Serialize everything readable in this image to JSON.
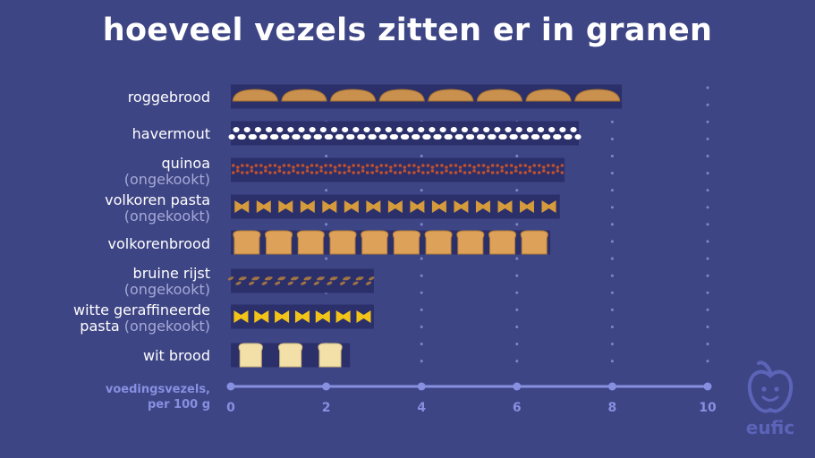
{
  "chart_data": {
    "type": "bar",
    "title": "hoeveel vezels zitten er in granen",
    "categories": [
      {
        "name": "roggebrood",
        "note": ""
      },
      {
        "name": "havermout",
        "note": ""
      },
      {
        "name": "quinoa",
        "note": "(ongekookt)"
      },
      {
        "name": "volkoren pasta",
        "note": "(ongekookt)"
      },
      {
        "name": "volkorenbrood",
        "note": ""
      },
      {
        "name": "bruine rijst",
        "note": "(ongekookt)"
      },
      {
        "name": "witte geraffineerde",
        "name2": "pasta",
        "note": "(ongekookt)"
      },
      {
        "name": "wit brood",
        "note": ""
      }
    ],
    "values": [
      8.2,
      7.3,
      7.0,
      6.9,
      6.7,
      3.0,
      3.0,
      2.5
    ],
    "icons": [
      "rye-bread-slice-icon",
      "oat-flake-icon",
      "quinoa-grain-icon",
      "wholegrain-pasta-icon",
      "wholegrain-bread-icon",
      "brown-rice-icon",
      "white-pasta-icon",
      "white-bread-icon"
    ],
    "xlabel": "voedingsvezels, per 100 g",
    "xlabel_line1": "voedingsvezels,",
    "xlabel_line2": "per 100 g",
    "xlim": [
      0,
      10
    ],
    "xticks": [
      0,
      2,
      4,
      6,
      8,
      10
    ],
    "grid": true,
    "orientation": "horizontal"
  },
  "colors": {
    "background": "#3e4585",
    "bar_background": "#2b2f6a",
    "axis": "#8790e0",
    "rye": "#c9914d",
    "oat": "#ffffff",
    "quinoa": "#c0522e",
    "pasta_wholegrain": "#d49a3c",
    "bread_wholegrain": "#dda15a",
    "rice": "#a07445",
    "pasta_white": "#f2c318",
    "bread_white": "#f3e0a8"
  },
  "logo": {
    "text": "eufic"
  }
}
